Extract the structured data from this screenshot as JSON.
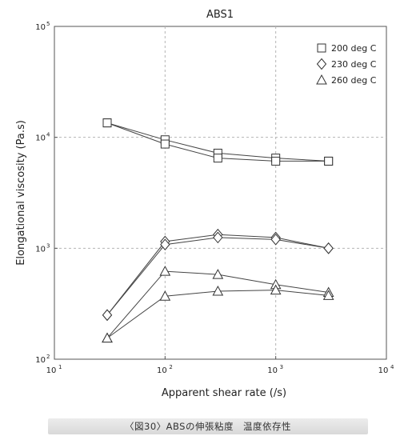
{
  "chart_data": {
    "type": "line",
    "title": "ABS1",
    "xlabel": "Apparent shear rate (/s)",
    "ylabel": "Elongational viscosity (Pa.s)",
    "x_scale": "log",
    "y_scale": "log",
    "xlim": [
      10,
      10000
    ],
    "ylim": [
      100,
      100000
    ],
    "x_ticks": [
      {
        "base": "10",
        "exp": "1"
      },
      {
        "base": "10",
        "exp": "2"
      },
      {
        "base": "10",
        "exp": "3"
      },
      {
        "base": "10",
        "exp": "4"
      }
    ],
    "y_ticks": [
      {
        "base": "10",
        "exp": "2"
      },
      {
        "base": "10",
        "exp": "3"
      },
      {
        "base": "10",
        "exp": "4"
      },
      {
        "base": "10",
        "exp": "5"
      }
    ],
    "grid": "dashed at decades",
    "legend_position": "top-right",
    "legend": [
      {
        "label": "200 deg C",
        "marker": "square"
      },
      {
        "label": "230 deg C",
        "marker": "diamond"
      },
      {
        "label": "260 deg C",
        "marker": "triangle"
      }
    ],
    "series": [
      {
        "marker": "square",
        "x": [
          30,
          100,
          300,
          1000,
          3000
        ],
        "y": [
          13500,
          9500,
          7200,
          6500,
          6100
        ]
      },
      {
        "marker": "square",
        "x": [
          30,
          100,
          300,
          1000,
          3000
        ],
        "y": [
          13500,
          8700,
          6500,
          6100,
          6100
        ]
      },
      {
        "marker": "diamond",
        "x": [
          30,
          100,
          300,
          1000,
          3000
        ],
        "y": [
          250,
          1150,
          1330,
          1250,
          1000
        ]
      },
      {
        "marker": "diamond",
        "x": [
          30,
          100,
          300,
          1000,
          3000
        ],
        "y": [
          250,
          1080,
          1250,
          1200,
          1000
        ]
      },
      {
        "marker": "triangle",
        "x": [
          30,
          100,
          300,
          1000,
          3000
        ],
        "y": [
          155,
          620,
          580,
          470,
          400
        ]
      },
      {
        "marker": "triangle",
        "x": [
          30,
          100,
          300,
          1000,
          3000
        ],
        "y": [
          155,
          370,
          410,
          420,
          375
        ]
      }
    ]
  },
  "caption": "〈図30〉ABSの伸張粘度　温度依存性"
}
